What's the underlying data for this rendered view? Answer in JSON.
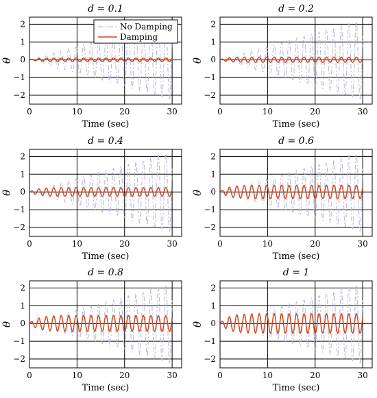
{
  "colors": {
    "no_damping": "#b9b9df",
    "damping": "#d4491f",
    "grid": "#000000"
  },
  "legend": {
    "no_damping": "No Damping",
    "damping": "Damping"
  },
  "chart_data": [
    {
      "type": "line",
      "title": "d = 0.1",
      "xlabel": "Time (sec)",
      "ylabel": "θ",
      "xlim": [
        0,
        32
      ],
      "ylim": [
        -2.5,
        2.4
      ],
      "xticks": [
        "0",
        "10",
        "20",
        "30"
      ],
      "yticks": [
        "2",
        "1",
        "0",
        "−1",
        "−2"
      ],
      "grid": true,
      "legend_position": "top-right",
      "series": [
        {
          "name": "No Damping",
          "style": "dash-dot",
          "t_range": [
            0,
            30
          ],
          "omega": 4.0,
          "amplitude_growth": 0.075,
          "final_amplitude": 2.25
        },
        {
          "name": "Damping",
          "style": "solid",
          "t_range": [
            0,
            30
          ],
          "omega": 4.0,
          "steady_amplitude": 0.1
        }
      ]
    },
    {
      "type": "line",
      "title": "d = 0.2",
      "xlabel": "Time (sec)",
      "ylabel": "θ",
      "xlim": [
        0,
        32
      ],
      "ylim": [
        -2.5,
        2.4
      ],
      "xticks": [
        "0",
        "10",
        "20",
        "30"
      ],
      "yticks": [
        "2",
        "1",
        "0",
        "−1",
        "−2"
      ],
      "grid": true,
      "series": [
        {
          "name": "No Damping",
          "style": "dash-dot",
          "t_range": [
            0,
            30
          ],
          "omega": 4.0,
          "amplitude_growth": 0.075,
          "final_amplitude": 2.25
        },
        {
          "name": "Damping",
          "style": "solid",
          "t_range": [
            0,
            30
          ],
          "omega": 4.0,
          "steady_amplitude": 0.15
        }
      ]
    },
    {
      "type": "line",
      "title": "d = 0.4",
      "xlabel": "Time (sec)",
      "ylabel": "θ",
      "xlim": [
        0,
        32
      ],
      "ylim": [
        -2.5,
        2.4
      ],
      "xticks": [
        "0",
        "10",
        "20",
        "30"
      ],
      "yticks": [
        "2",
        "1",
        "0",
        "−1",
        "−2"
      ],
      "grid": true,
      "series": [
        {
          "name": "No Damping",
          "style": "dash-dot",
          "t_range": [
            0,
            30
          ],
          "omega": 4.0,
          "amplitude_growth": 0.075,
          "final_amplitude": 2.25
        },
        {
          "name": "Damping",
          "style": "solid",
          "t_range": [
            0,
            30
          ],
          "omega": 4.0,
          "steady_amplitude": 0.25
        }
      ]
    },
    {
      "type": "line",
      "title": "d = 0.6",
      "xlabel": "Time (sec)",
      "ylabel": "θ",
      "xlim": [
        0,
        32
      ],
      "ylim": [
        -2.5,
        2.4
      ],
      "xticks": [
        "0",
        "10",
        "20",
        "30"
      ],
      "yticks": [
        "2",
        "1",
        "0",
        "−1",
        "−2"
      ],
      "grid": true,
      "series": [
        {
          "name": "No Damping",
          "style": "dash-dot",
          "t_range": [
            0,
            30
          ],
          "omega": 4.0,
          "amplitude_growth": 0.075,
          "final_amplitude": 2.25
        },
        {
          "name": "Damping",
          "style": "solid",
          "t_range": [
            0,
            30
          ],
          "omega": 4.0,
          "steady_amplitude": 0.38
        }
      ]
    },
    {
      "type": "line",
      "title": "d = 0.8",
      "xlabel": "Time (sec)",
      "ylabel": "θ",
      "xlim": [
        0,
        32
      ],
      "ylim": [
        -2.5,
        2.4
      ],
      "xticks": [
        "0",
        "10",
        "20",
        "30"
      ],
      "yticks": [
        "2",
        "1",
        "0",
        "−1",
        "−2"
      ],
      "grid": true,
      "series": [
        {
          "name": "No Damping",
          "style": "dash-dot",
          "t_range": [
            0,
            30
          ],
          "omega": 4.0,
          "amplitude_growth": 0.075,
          "final_amplitude": 2.25
        },
        {
          "name": "Damping",
          "style": "solid",
          "t_range": [
            0,
            30
          ],
          "omega": 4.0,
          "steady_amplitude": 0.45
        }
      ]
    },
    {
      "type": "line",
      "title": "d = 1",
      "xlabel": "Time (sec)",
      "ylabel": "θ",
      "xlim": [
        0,
        32
      ],
      "ylim": [
        -2.5,
        2.4
      ],
      "xticks": [
        "0",
        "10",
        "20",
        "30"
      ],
      "yticks": [
        "2",
        "1",
        "0",
        "−1",
        "−2"
      ],
      "grid": true,
      "series": [
        {
          "name": "No Damping",
          "style": "dash-dot",
          "t_range": [
            0,
            30
          ],
          "omega": 4.0,
          "amplitude_growth": 0.075,
          "final_amplitude": 2.25
        },
        {
          "name": "Damping",
          "style": "solid",
          "t_range": [
            0,
            30
          ],
          "omega": 4.0,
          "steady_amplitude": 0.55
        }
      ]
    }
  ]
}
